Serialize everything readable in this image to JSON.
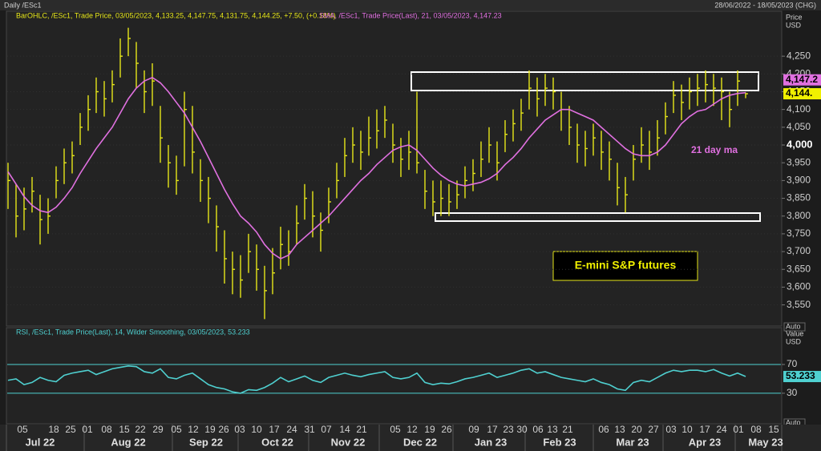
{
  "header": {
    "title": "Daily /ESc1",
    "date_range": "28/06/2022 - 18/05/2023 (CHG)"
  },
  "chart_data": [
    {
      "type": "ohlc",
      "series": [
        {
          "name": "BarOHLC, /ESc1, Trade Price, 03/05/2023, 4,133.25, 4,147.75, 4,131.75, 4,144.25, +7.50, (+0.18%)",
          "color": "#e6e619",
          "last_label": "4,144.",
          "high": [
            3950,
            3890,
            3880,
            3910,
            3860,
            3850,
            3940,
            3990,
            4010,
            4090,
            4140,
            4190,
            4180,
            4210,
            4300,
            4330,
            4290,
            4210,
            4230,
            4110,
            4000,
            3970,
            4150,
            4110,
            3960,
            3910,
            3830,
            3760,
            3700,
            3690,
            3750,
            3720,
            3660,
            3710,
            3770,
            3760,
            3830,
            3890,
            3870,
            3810,
            3880,
            3950,
            4020,
            4050,
            4040,
            4080,
            4100,
            4110,
            4060,
            4020,
            4040,
            4150,
            3930,
            3900,
            3900,
            3890,
            3900,
            3940,
            3960,
            4010,
            4050,
            4010,
            4070,
            4100,
            4130,
            4210,
            4190,
            4200,
            4190,
            4150,
            4110,
            4060,
            4040,
            4060,
            4040,
            4010,
            3950,
            3910,
            4000,
            4050,
            4040,
            4070,
            4120,
            4180,
            4170,
            4190,
            4200,
            4210,
            4200,
            4190,
            4150,
            4210,
            4147.75
          ],
          "low": [
            3820,
            3740,
            3760,
            3810,
            3720,
            3750,
            3850,
            3890,
            3920,
            4000,
            4040,
            4090,
            4080,
            4120,
            4190,
            4250,
            4160,
            4090,
            4110,
            3950,
            3880,
            3860,
            3940,
            3920,
            3840,
            3780,
            3700,
            3610,
            3580,
            3570,
            3640,
            3590,
            3510,
            3580,
            3650,
            3660,
            3720,
            3790,
            3740,
            3700,
            3780,
            3850,
            3910,
            3950,
            3930,
            3970,
            3990,
            4020,
            3950,
            3910,
            3930,
            3920,
            3820,
            3800,
            3800,
            3800,
            3820,
            3850,
            3870,
            3910,
            3950,
            3900,
            3980,
            4010,
            4040,
            4100,
            4080,
            4110,
            4100,
            4040,
            4000,
            3950,
            3940,
            3970,
            3930,
            3900,
            3830,
            3810,
            3900,
            3950,
            3930,
            3970,
            4030,
            4090,
            4070,
            4100,
            4110,
            4120,
            4110,
            4070,
            4050,
            4110,
            4131.75
          ],
          "close": [
            3900,
            3800,
            3820,
            3870,
            3790,
            3800,
            3900,
            3950,
            3970,
            4050,
            4100,
            4150,
            4130,
            4170,
            4250,
            4300,
            4230,
            4150,
            4180,
            4020,
            3950,
            3900,
            4100,
            3980,
            3900,
            3850,
            3770,
            3680,
            3650,
            3620,
            3700,
            3650,
            3590,
            3640,
            3720,
            3700,
            3780,
            3850,
            3800,
            3760,
            3840,
            3900,
            3970,
            4000,
            3980,
            4020,
            4040,
            4070,
            4000,
            3960,
            3980,
            3950,
            3870,
            3840,
            3850,
            3840,
            3860,
            3900,
            3920,
            3960,
            4000,
            3950,
            4030,
            4060,
            4090,
            4160,
            4130,
            4160,
            4150,
            4100,
            4050,
            4000,
            3990,
            4020,
            3980,
            3960,
            3880,
            3860,
            3960,
            4000,
            3980,
            4020,
            4080,
            4140,
            4120,
            4150,
            4160,
            4170,
            4160,
            4150,
            4100,
            4180,
            4144.25
          ]
        },
        {
          "name": "SMA, /ESc1, Trade Price(Last), 21, 03/05/2023, 4,147.23",
          "color": "#e070e0",
          "last_label": "4,147.2",
          "values": [
            3925,
            3890,
            3855,
            3830,
            3815,
            3810,
            3825,
            3850,
            3880,
            3920,
            3955,
            3990,
            4020,
            4050,
            4090,
            4130,
            4160,
            4180,
            4190,
            4175,
            4150,
            4120,
            4090,
            4050,
            4010,
            3965,
            3920,
            3875,
            3835,
            3800,
            3780,
            3755,
            3720,
            3695,
            3680,
            3690,
            3720,
            3740,
            3760,
            3780,
            3800,
            3825,
            3850,
            3875,
            3900,
            3920,
            3945,
            3965,
            3985,
            3995,
            4000,
            3985,
            3960,
            3935,
            3915,
            3900,
            3890,
            3885,
            3890,
            3895,
            3905,
            3920,
            3945,
            3965,
            3990,
            4020,
            4045,
            4070,
            4085,
            4100,
            4100,
            4090,
            4080,
            4070,
            4050,
            4030,
            4010,
            3990,
            3975,
            3970,
            3970,
            3980,
            4000,
            4030,
            4060,
            4080,
            4095,
            4100,
            4115,
            4130,
            4140,
            4145,
            4147.23
          ]
        }
      ],
      "axis_title": [
        "Price",
        "USD"
      ],
      "scale_mode": "Auto",
      "ylim": [
        3495,
        4345
      ],
      "yticks": [
        {
          "value": 3550,
          "label": "3,550"
        },
        {
          "value": 3600,
          "label": "3,600"
        },
        {
          "value": 3650,
          "label": "3,650"
        },
        {
          "value": 3700,
          "label": "3,700"
        },
        {
          "value": 3750,
          "label": "3,750"
        },
        {
          "value": 3800,
          "label": "3,800"
        },
        {
          "value": 3850,
          "label": "3,850"
        },
        {
          "value": 3900,
          "label": "3,900"
        },
        {
          "value": 3950,
          "label": "3,950"
        },
        {
          "value": 4000,
          "label": "4,000"
        },
        {
          "value": 4050,
          "label": "4,050"
        },
        {
          "value": 4100,
          "label": "4,100"
        },
        {
          "value": 4150,
          "label": "4,150"
        },
        {
          "value": 4200,
          "label": "4,200"
        },
        {
          "value": 4250,
          "label": "4,250"
        }
      ],
      "annotations": [
        "E-mini S&P futures",
        "21 day ma"
      ]
    },
    {
      "type": "line",
      "series": [
        {
          "name": "RSI, /ESc1, Trade Price(Last), 14, Wilder Smoothing, 03/05/2023, 53.233",
          "color": "#4fd0d0",
          "last_label": "53.233",
          "values": [
            48,
            50,
            42,
            45,
            52,
            48,
            46,
            55,
            58,
            60,
            62,
            56,
            60,
            64,
            66,
            68,
            67,
            60,
            58,
            64,
            52,
            50,
            55,
            58,
            50,
            42,
            38,
            36,
            32,
            30,
            35,
            34,
            38,
            44,
            52,
            46,
            50,
            54,
            48,
            45,
            52,
            55,
            58,
            55,
            53,
            56,
            58,
            60,
            52,
            50,
            52,
            58,
            45,
            42,
            44,
            43,
            46,
            50,
            52,
            55,
            58,
            52,
            55,
            58,
            62,
            64,
            58,
            60,
            56,
            52,
            50,
            48,
            46,
            50,
            45,
            42,
            36,
            34,
            45,
            48,
            46,
            52,
            58,
            62,
            60,
            62,
            62,
            60,
            63,
            58,
            54,
            58,
            53.233
          ]
        }
      ],
      "axis_title": [
        "Value",
        "USD"
      ],
      "scale_mode": "Auto",
      "ylim": [
        -8,
        109
      ],
      "yticks": [
        30,
        70
      ]
    }
  ],
  "time_axis": {
    "days": [
      "05",
      "18",
      "25",
      "01",
      "08",
      "15",
      "22",
      "29",
      "05",
      "12",
      "19",
      "26",
      "03",
      "10",
      "17",
      "24",
      "31",
      "07",
      "14",
      "21",
      "05",
      "12",
      "19",
      "26",
      "09",
      "17",
      "23",
      "30",
      "06",
      "13",
      "21",
      "06",
      "13",
      "20",
      "27",
      "03",
      "10",
      "17",
      "24",
      "01",
      "08",
      "15"
    ],
    "months": [
      "Jul 22",
      "Aug 22",
      "Sep 22",
      "Oct 22",
      "Nov 22",
      "Dec 22",
      "Jan 23",
      "Feb 23",
      "Mar 23",
      "Apr 23",
      "May 23"
    ]
  }
}
